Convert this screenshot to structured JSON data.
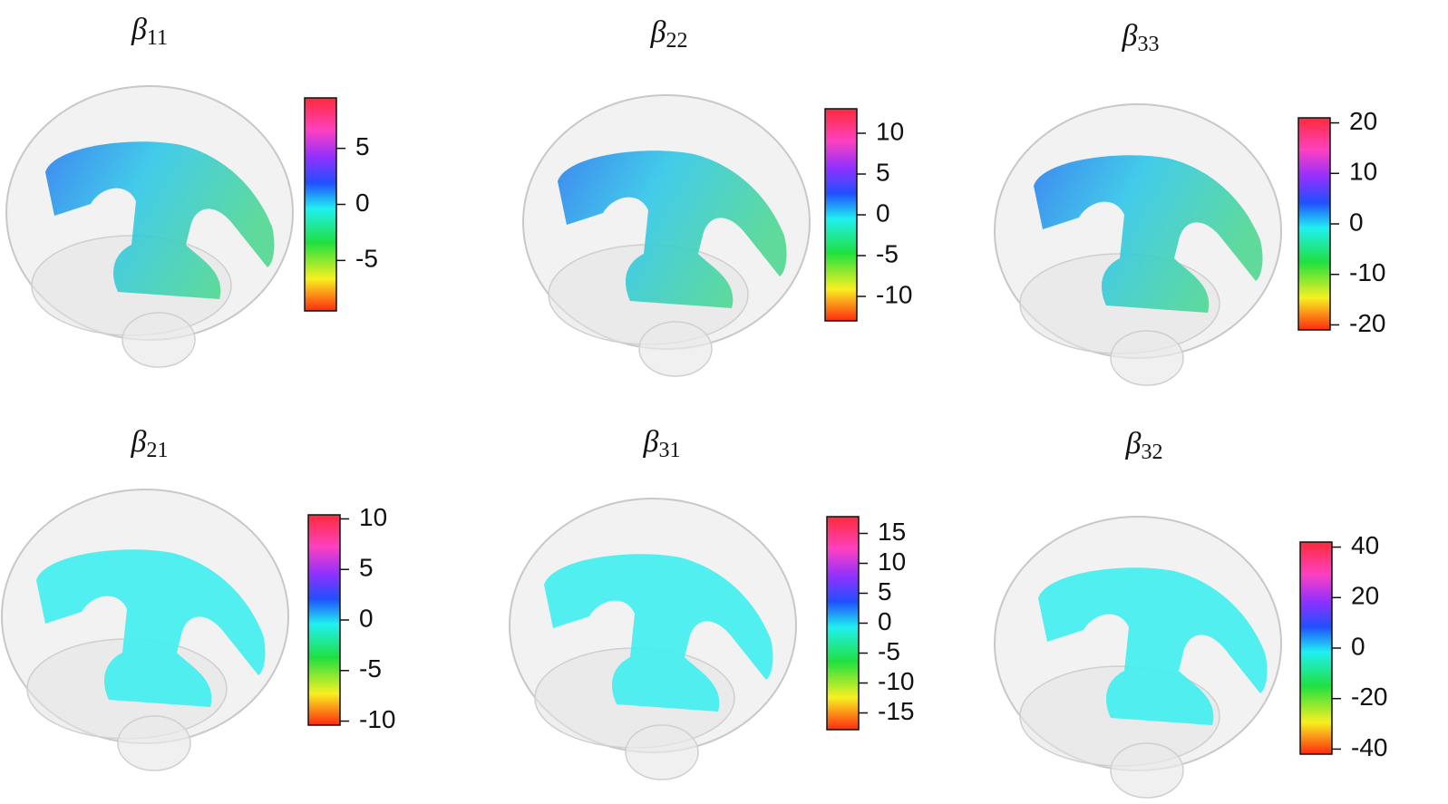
{
  "panels": [
    {
      "symbol": "β",
      "subscript": "11",
      "colorbar": {
        "lim": [
          -9.5,
          9.5
        ],
        "ticks": [
          5,
          0,
          -5
        ]
      }
    },
    {
      "symbol": "β",
      "subscript": "22",
      "colorbar": {
        "lim": [
          -13,
          13
        ],
        "ticks": [
          10,
          5,
          0,
          -5,
          -10
        ]
      }
    },
    {
      "symbol": "β",
      "subscript": "33",
      "colorbar": {
        "lim": [
          -21,
          21
        ],
        "ticks": [
          20,
          10,
          0,
          -10,
          -20
        ]
      }
    },
    {
      "symbol": "β",
      "subscript": "21",
      "colorbar": {
        "lim": [
          -10.4,
          10.4
        ],
        "ticks": [
          10,
          5,
          0,
          -5,
          -10
        ]
      }
    },
    {
      "symbol": "β",
      "subscript": "31",
      "colorbar": {
        "lim": [
          -17.8,
          17.8
        ],
        "ticks": [
          15,
          10,
          5,
          0,
          -5,
          -10,
          -15
        ]
      }
    },
    {
      "symbol": "β",
      "subscript": "32",
      "colorbar": {
        "lim": [
          -42,
          42
        ],
        "ticks": [
          40,
          20,
          0,
          -20,
          -40
        ]
      }
    }
  ]
}
